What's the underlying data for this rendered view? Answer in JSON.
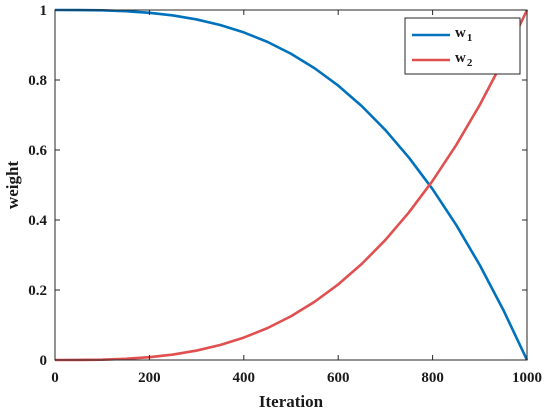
{
  "chart_data": {
    "type": "line",
    "title": "",
    "xlabel": "Iteration",
    "ylabel": "weight",
    "xlim": [
      0,
      1000
    ],
    "ylim": [
      0,
      1
    ],
    "x_ticks": [
      0,
      200,
      400,
      600,
      800,
      1000
    ],
    "y_ticks": [
      0,
      0.2,
      0.4,
      0.6,
      0.8,
      1
    ],
    "x_tick_labels": [
      "0",
      "200",
      "400",
      "600",
      "800",
      "1000"
    ],
    "y_tick_labels": [
      "0",
      "0.2",
      "0.4",
      "0.6",
      "0.8",
      "1"
    ],
    "grid": false,
    "legend_position": "top-right",
    "x": [
      0,
      50,
      100,
      150,
      200,
      250,
      300,
      350,
      400,
      450,
      500,
      550,
      600,
      650,
      700,
      750,
      800,
      850,
      900,
      950,
      1000
    ],
    "series": [
      {
        "name": "w",
        "name_sub": "1",
        "color": "#0072BD",
        "values": [
          1.0,
          0.9999,
          0.999,
          0.9966,
          0.992,
          0.9844,
          0.973,
          0.9571,
          0.936,
          0.9089,
          0.875,
          0.8336,
          0.784,
          0.7254,
          0.657,
          0.5781,
          0.488,
          0.3859,
          0.271,
          0.1426,
          0.0
        ]
      },
      {
        "name": "w",
        "name_sub": "2",
        "color": "#E05050",
        "values": [
          0.0,
          0.0001,
          0.001,
          0.0034,
          0.008,
          0.0156,
          0.027,
          0.0429,
          0.064,
          0.0911,
          0.125,
          0.1664,
          0.216,
          0.2746,
          0.343,
          0.4219,
          0.512,
          0.6141,
          0.729,
          0.8574,
          1.0
        ]
      }
    ]
  }
}
